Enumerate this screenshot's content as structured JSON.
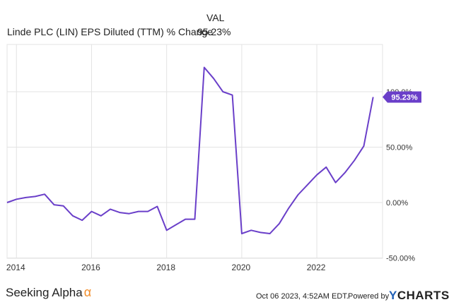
{
  "legend": {
    "header": "VAL",
    "series_label": "Linde PLC (LIN) EPS Diluted (TTM) % Change",
    "series_value": "95.23%"
  },
  "footer": {
    "brand": "Seeking Alpha",
    "brand_symbol": "α",
    "timestamp": "Oct 06 2023, 4:52AM EDT.",
    "powered_by": "Powered by",
    "logo_y": "Y",
    "logo_rest": "CHARTS"
  },
  "colors": {
    "line": "#6a3fc9",
    "grid": "#e3e3e3",
    "badge": "#6a3fc9",
    "brand_alpha": "#f28c28",
    "logo_y": "#1f5fb5"
  },
  "chart_data": {
    "type": "line",
    "title": "",
    "xlabel": "",
    "ylabel": "",
    "ylim": [
      -50,
      100
    ],
    "xlim": [
      2013.75,
      2023.75
    ],
    "x_tick_labels": [
      "2014",
      "2016",
      "2018",
      "2020",
      "2022"
    ],
    "x_ticks": [
      2014,
      2016,
      2018,
      2020,
      2022
    ],
    "y_tick_labels": [
      "100.0%",
      "50.00%",
      "0.00%",
      "-50.00%"
    ],
    "y_ticks": [
      100,
      50,
      0,
      -50
    ],
    "grid": true,
    "last_value_label": "95.23%",
    "series": [
      {
        "name": "Linde PLC (LIN) EPS Diluted (TTM) % Change",
        "x": [
          2013.75,
          2014.0,
          2014.25,
          2014.5,
          2014.75,
          2015.0,
          2015.25,
          2015.5,
          2015.75,
          2016.0,
          2016.25,
          2016.5,
          2016.75,
          2017.0,
          2017.25,
          2017.5,
          2017.75,
          2018.0,
          2018.25,
          2018.5,
          2018.75,
          2019.0,
          2019.25,
          2019.5,
          2019.75,
          2020.0,
          2020.25,
          2020.5,
          2020.75,
          2021.0,
          2021.25,
          2021.5,
          2021.75,
          2022.0,
          2022.25,
          2022.5,
          2022.75,
          2023.0,
          2023.25,
          2023.5
        ],
        "y": [
          0,
          3,
          4.5,
          5.5,
          7.5,
          -2,
          -3,
          -12,
          -16,
          -8,
          -12,
          -6,
          -9,
          -10,
          -8,
          -8,
          -3.5,
          -25,
          -20,
          -15,
          -15,
          122,
          112,
          100,
          97,
          -28,
          -25,
          -27,
          -28,
          -19,
          -5,
          7,
          16,
          25,
          32,
          18,
          27,
          38,
          51,
          95.23
        ]
      }
    ]
  }
}
